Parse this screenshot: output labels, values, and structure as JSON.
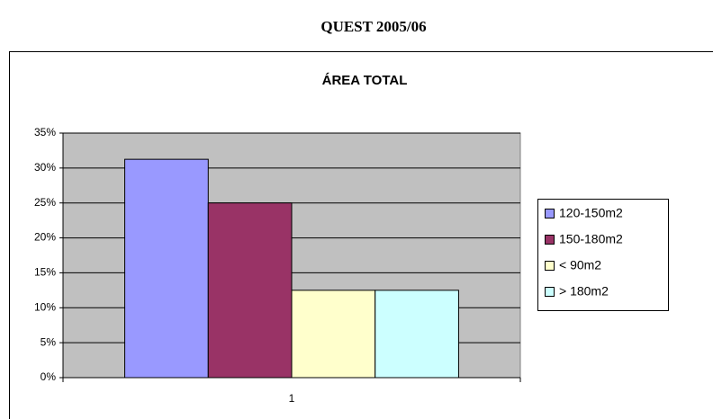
{
  "heading": "QUEST 2005/06",
  "chart_data": {
    "type": "bar",
    "title": "ÁREA TOTAL",
    "categories": [
      "1"
    ],
    "series": [
      {
        "name": "120-150m2",
        "color": "#9999ff",
        "values": [
          31.25
        ]
      },
      {
        "name": "150-180m2",
        "color": "#993366",
        "values": [
          25
        ]
      },
      {
        "name": "< 90m2",
        "color": "#ffffcc",
        "values": [
          12.5
        ]
      },
      {
        "name": "> 180m2",
        "color": "#ccffff",
        "values": [
          12.5
        ]
      }
    ],
    "ylim": [
      0,
      35
    ],
    "yticks": [
      {
        "value": 0,
        "label": "0%"
      },
      {
        "value": 5,
        "label": "5%"
      },
      {
        "value": 10,
        "label": "10%"
      },
      {
        "value": 15,
        "label": "15%"
      },
      {
        "value": 20,
        "label": "20%"
      },
      {
        "value": 25,
        "label": "25%"
      },
      {
        "value": 30,
        "label": "30%"
      },
      {
        "value": 35,
        "label": "35%"
      }
    ],
    "grid": true,
    "legend": "right",
    "plot_color": "#c0c0c0"
  }
}
